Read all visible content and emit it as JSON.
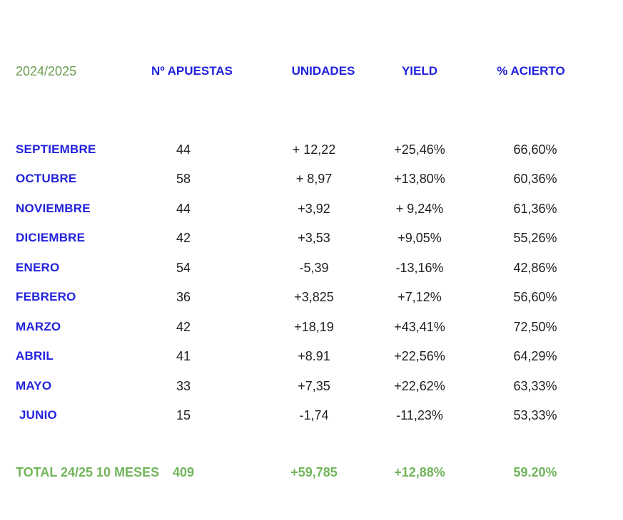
{
  "header": {
    "season": "2024/2025",
    "columns": {
      "bets": "Nº APUESTAS",
      "units": "UNIDADES",
      "yield": "YIELD",
      "accuracy": "% ACIERTO"
    }
  },
  "rows": [
    {
      "month": "SEPTIEMBRE",
      "bets": "44",
      "units": "+ 12,22",
      "yield": "+25,46%",
      "accuracy": "66,60%"
    },
    {
      "month": "OCTUBRE",
      "bets": "58",
      "units": "+ 8,97",
      "yield": "+13,80%",
      "accuracy": "60,36%"
    },
    {
      "month": "NOVIEMBRE",
      "bets": "44",
      "units": "+3,92",
      "yield": "+ 9,24%",
      "accuracy": "61,36%"
    },
    {
      "month": "DICIEMBRE",
      "bets": "42",
      "units": "+3,53",
      "yield": "+9,05%",
      "accuracy": "55,26%"
    },
    {
      "month": "ENERO",
      "bets": "54",
      "units": "-5,39",
      "yield": "-13,16%",
      "accuracy": "42,86%"
    },
    {
      "month": "FEBRERO",
      "bets": "36",
      "units": "+3,825",
      "yield": "+7,12%",
      "accuracy": "56,60%"
    },
    {
      "month": "MARZO",
      "bets": "42",
      "units": "+18,19",
      "yield": "+43,41%",
      "accuracy": "72,50%"
    },
    {
      "month": "ABRIL",
      "bets": "41",
      "units": "+8.91",
      "yield": "+22,56%",
      "accuracy": "64,29%"
    },
    {
      "month": "MAYO",
      "bets": "33",
      "units": "+7,35",
      "yield": "+22,62%",
      "accuracy": "63,33%"
    },
    {
      "month": "JUNIO",
      "bets": "15",
      "units": "-1,74",
      "yield": "-11,23%",
      "accuracy": "53,33%"
    }
  ],
  "total": {
    "label": "TOTAL 24/25 10 MESES",
    "bets": "409",
    "units": "+59,785",
    "yield": "+12,88%",
    "accuracy": "59.20%"
  },
  "colors": {
    "column_header_blue": "#2222dd",
    "month_blue": "#2222dd",
    "season_green": "#699e4f",
    "total_green": "#70b55a",
    "value_black": "#1f1f1f"
  }
}
